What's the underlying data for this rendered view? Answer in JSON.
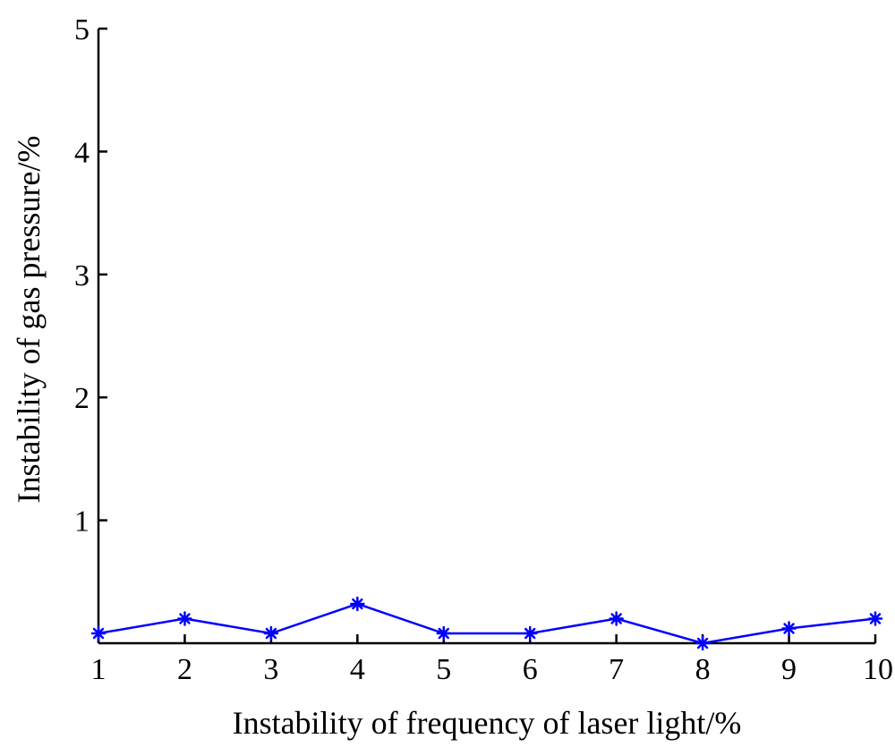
{
  "chart_data": {
    "type": "line",
    "title": "",
    "xlabel": "Instability of frequency of laser light/%",
    "ylabel": "Instability of gas pressure/%",
    "xlim": [
      1,
      10
    ],
    "ylim": [
      0,
      5
    ],
    "x_ticks": [
      "1",
      "2",
      "3",
      "4",
      "5",
      "6",
      "7",
      "8",
      "9",
      "10"
    ],
    "y_ticks": [
      "1",
      "2",
      "3",
      "4",
      "5"
    ],
    "grid": false,
    "series": [
      {
        "color": "#0000ff",
        "marker": "asterisk",
        "x": [
          1,
          2,
          3,
          4,
          5,
          6,
          7,
          8,
          9,
          10
        ],
        "y": [
          0.08,
          0.2,
          0.08,
          0.32,
          0.08,
          0.08,
          0.2,
          0.0,
          0.12,
          0.2
        ]
      }
    ]
  }
}
